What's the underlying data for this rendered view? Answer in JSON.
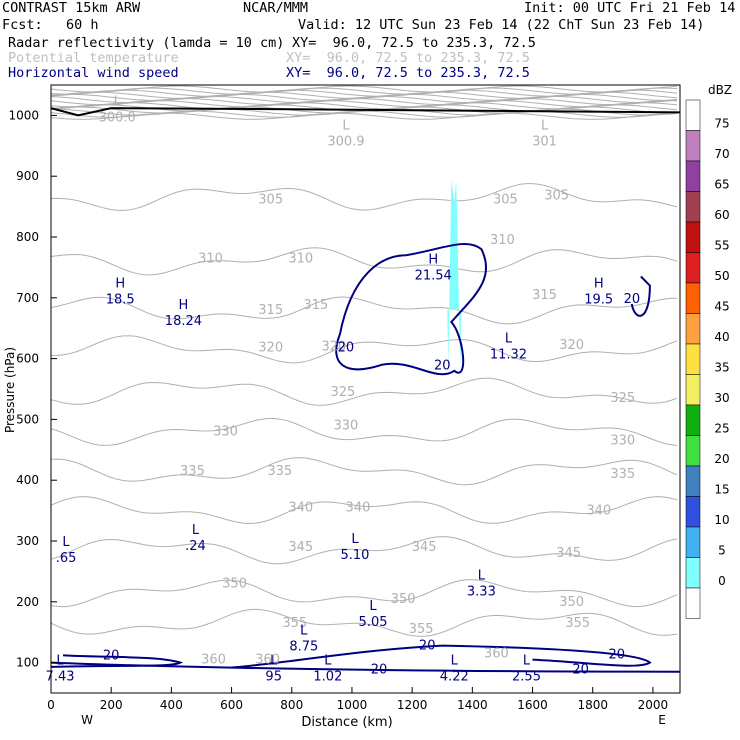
{
  "header": {
    "model": "CONTRAST 15km ARW",
    "center": "NCAR/MMM",
    "init": "Init: 00 UTC Fri 21 Feb 14",
    "fcst_label": "Fcst:",
    "fcst_value": "60 h",
    "valid": "Valid: 12 UTC Sun 23 Feb 14 (22 ChT Sun 23 Feb 14)",
    "fields": [
      {
        "name": "Radar reflectivity (lamda = 10 cm)",
        "xy": "XY=  96.0, 72.5 to 235.3, 72.5",
        "color": "#000000"
      },
      {
        "name": "Potential temperature",
        "xy": "XY=  96.0, 72.5 to 235.3, 72.5",
        "color": "#c0c0c0"
      },
      {
        "name": "Horizontal wind speed",
        "xy": "XY=  96.0, 72.5 to 235.3, 72.5",
        "color": "#000080"
      }
    ]
  },
  "chart_data": {
    "type": "contour-cross-section",
    "xlabel": "Distance (km)",
    "ylabel": "Pressure (hPa)",
    "xlim": [
      0,
      2090
    ],
    "ylim": [
      1050,
      50
    ],
    "xticks": [
      0,
      200,
      400,
      600,
      800,
      1000,
      1200,
      1400,
      1600,
      1800,
      2000
    ],
    "yticks": [
      100,
      200,
      300,
      400,
      500,
      600,
      700,
      800,
      900,
      1000
    ],
    "x_end_labels": {
      "left": "W",
      "right": "E"
    },
    "theta_contours": [
      {
        "value": 355,
        "p": 165
      },
      {
        "value": 350,
        "p": 215
      },
      {
        "value": 345,
        "p": 285
      },
      {
        "value": 340,
        "p": 350
      },
      {
        "value": 335,
        "p": 415
      },
      {
        "value": 330,
        "p": 480
      },
      {
        "value": 325,
        "p": 545
      },
      {
        "value": 320,
        "p": 615
      },
      {
        "value": 315,
        "p": 680
      },
      {
        "value": 310,
        "p": 760
      },
      {
        "value": 305,
        "p": 865
      }
    ],
    "theta_labels": [
      {
        "text": "360",
        "x": 540,
        "p": 105
      },
      {
        "text": "360",
        "x": 720,
        "p": 105
      },
      {
        "text": "360",
        "x": 1480,
        "p": 115
      },
      {
        "text": "355",
        "x": 810,
        "p": 165
      },
      {
        "text": "355",
        "x": 1230,
        "p": 155
      },
      {
        "text": "355",
        "x": 1750,
        "p": 165
      },
      {
        "text": "350",
        "x": 610,
        "p": 230
      },
      {
        "text": "350",
        "x": 1170,
        "p": 205
      },
      {
        "text": "350",
        "x": 1730,
        "p": 200
      },
      {
        "text": "345",
        "x": 830,
        "p": 290
      },
      {
        "text": "345",
        "x": 1240,
        "p": 290
      },
      {
        "text": "345",
        "x": 1720,
        "p": 280
      },
      {
        "text": "340",
        "x": 830,
        "p": 355
      },
      {
        "text": "340",
        "x": 1020,
        "p": 355
      },
      {
        "text": "340",
        "x": 1820,
        "p": 350
      },
      {
        "text": "335",
        "x": 470,
        "p": 415
      },
      {
        "text": "335",
        "x": 760,
        "p": 415
      },
      {
        "text": "335",
        "x": 1900,
        "p": 410
      },
      {
        "text": "330",
        "x": 580,
        "p": 480
      },
      {
        "text": "330",
        "x": 980,
        "p": 490
      },
      {
        "text": "330",
        "x": 1900,
        "p": 465
      },
      {
        "text": "325",
        "x": 970,
        "p": 545
      },
      {
        "text": "325",
        "x": 1900,
        "p": 535
      },
      {
        "text": "320",
        "x": 730,
        "p": 618
      },
      {
        "text": "320",
        "x": 940,
        "p": 620
      },
      {
        "text": "320",
        "x": 1730,
        "p": 622
      },
      {
        "text": "315",
        "x": 730,
        "p": 680
      },
      {
        "text": "315",
        "x": 880,
        "p": 688
      },
      {
        "text": "315",
        "x": 1640,
        "p": 705
      },
      {
        "text": "310",
        "x": 530,
        "p": 765
      },
      {
        "text": "310",
        "x": 830,
        "p": 765
      },
      {
        "text": "310",
        "x": 1500,
        "p": 795
      },
      {
        "text": "305",
        "x": 730,
        "p": 862
      },
      {
        "text": "305",
        "x": 1510,
        "p": 862
      },
      {
        "text": "305",
        "x": 1680,
        "p": 868
      }
    ],
    "pressure_centers": [
      {
        "type": "L",
        "value": "7.43",
        "x": 30,
        "p": 90
      },
      {
        "type": "L",
        "value": "95",
        "x": 740,
        "p": 90
      },
      {
        "type": "L",
        "value": "1.02",
        "x": 920,
        "p": 90
      },
      {
        "type": "L",
        "value": "4.22",
        "x": 1340,
        "p": 90
      },
      {
        "type": "L",
        "value": "2.55",
        "x": 1580,
        "p": 90
      },
      {
        "type": "L",
        "value": "8.75",
        "x": 840,
        "p": 140
      },
      {
        "type": "L",
        "value": "5.05",
        "x": 1070,
        "p": 180
      },
      {
        "type": "L",
        "value": "3.33",
        "x": 1430,
        "p": 230
      },
      {
        "type": "L",
        "value": ".65",
        "x": 50,
        "p": 285
      },
      {
        "type": "L",
        "value": ".24",
        "x": 480,
        "p": 305
      },
      {
        "type": "L",
        "value": "5.10",
        "x": 1010,
        "p": 290
      },
      {
        "type": "L",
        "value": "11.32",
        "x": 1520,
        "p": 620
      },
      {
        "type": "H",
        "value": "18.24",
        "x": 440,
        "p": 675
      },
      {
        "type": "H",
        "value": "18.5",
        "x": 230,
        "p": 710
      },
      {
        "type": "H",
        "value": "21.54",
        "x": 1270,
        "p": 750
      },
      {
        "type": "H",
        "value": "19.5",
        "x": 1820,
        "p": 710
      },
      {
        "type": "L",
        "value": "300.9",
        "x": 980,
        "p": 970
      },
      {
        "type": "L",
        "value": "301",
        "x": 1640,
        "p": 970
      },
      {
        "type": "L",
        "value": "300.0",
        "x": 220,
        "p": 1010
      }
    ],
    "wind_labels": [
      {
        "text": "20",
        "x": 200,
        "p": 113
      },
      {
        "text": "20",
        "x": 1090,
        "p": 90
      },
      {
        "text": "20",
        "x": 1250,
        "p": 130
      },
      {
        "text": "20",
        "x": 1760,
        "p": 90
      },
      {
        "text": "20",
        "x": 1880,
        "p": 115
      },
      {
        "text": "20",
        "x": 1300,
        "p": 590
      },
      {
        "text": "20",
        "x": 980,
        "p": 620
      },
      {
        "text": "20",
        "x": 1930,
        "p": 700
      }
    ],
    "wind_contour_value": 20,
    "reflectivity": {
      "x": 1340,
      "p_top": 680,
      "p_bottom": 860,
      "dbz": 7
    },
    "colorbar": {
      "unit": "dBZ",
      "levels": [
        75,
        70,
        65,
        60,
        55,
        50,
        45,
        40,
        35,
        30,
        25,
        20,
        15,
        10,
        5,
        0
      ],
      "colors": [
        "#ffffff",
        "#c080c0",
        "#9040a0",
        "#a04050",
        "#c01010",
        "#e02020",
        "#ff6000",
        "#ffa040",
        "#ffe040",
        "#f0f060",
        "#10b010",
        "#40e040",
        "#4080c0",
        "#3050e0",
        "#40b0f0",
        "#80ffff",
        "#ffffff"
      ]
    }
  }
}
